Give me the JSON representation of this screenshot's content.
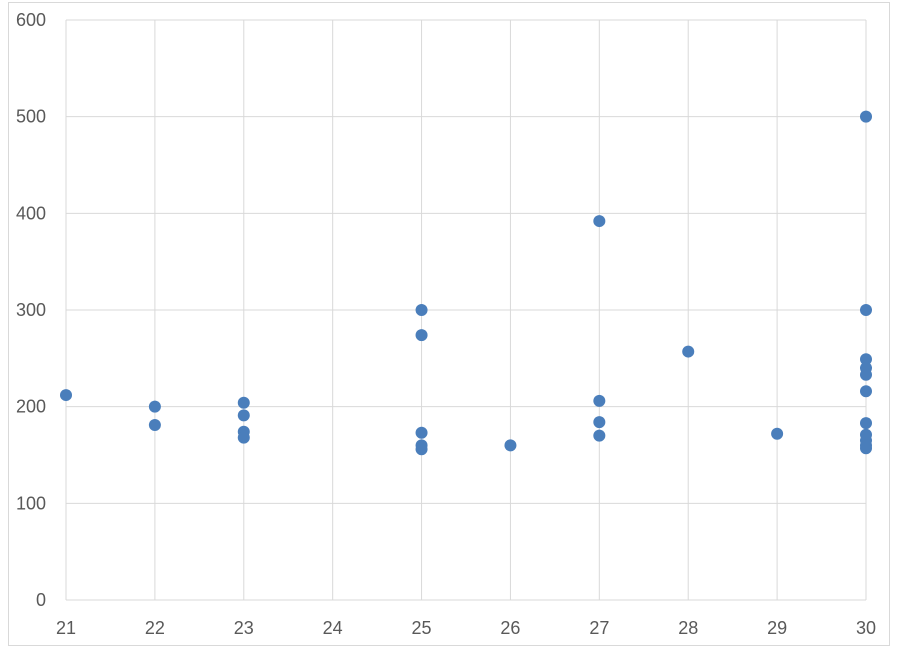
{
  "chart_data": {
    "type": "scatter",
    "title": "",
    "xlabel": "",
    "ylabel": "",
    "xlim": [
      21,
      30
    ],
    "ylim": [
      0,
      600
    ],
    "x_ticks": [
      "21",
      "22",
      "23",
      "24",
      "25",
      "26",
      "27",
      "28",
      "29",
      "30"
    ],
    "y_ticks": [
      "0",
      "100",
      "200",
      "300",
      "400",
      "500",
      "600"
    ],
    "grid": true,
    "marker_color": "#4a7ebb",
    "grid_color": "#d9d9d9",
    "series": [
      {
        "points": [
          {
            "x": 21,
            "y": 212
          },
          {
            "x": 22,
            "y": 200
          },
          {
            "x": 22,
            "y": 181
          },
          {
            "x": 23,
            "y": 204
          },
          {
            "x": 23,
            "y": 191
          },
          {
            "x": 23,
            "y": 174
          },
          {
            "x": 23,
            "y": 168
          },
          {
            "x": 25,
            "y": 300
          },
          {
            "x": 25,
            "y": 274
          },
          {
            "x": 25,
            "y": 173
          },
          {
            "x": 25,
            "y": 160
          },
          {
            "x": 25,
            "y": 156
          },
          {
            "x": 26,
            "y": 160
          },
          {
            "x": 27,
            "y": 392
          },
          {
            "x": 27,
            "y": 206
          },
          {
            "x": 27,
            "y": 184
          },
          {
            "x": 27,
            "y": 170
          },
          {
            "x": 28,
            "y": 257
          },
          {
            "x": 29,
            "y": 172
          },
          {
            "x": 30,
            "y": 500
          },
          {
            "x": 30,
            "y": 300
          },
          {
            "x": 30,
            "y": 249
          },
          {
            "x": 30,
            "y": 240
          },
          {
            "x": 30,
            "y": 233
          },
          {
            "x": 30,
            "y": 216
          },
          {
            "x": 30,
            "y": 183
          },
          {
            "x": 30,
            "y": 171
          },
          {
            "x": 30,
            "y": 165
          },
          {
            "x": 30,
            "y": 160
          },
          {
            "x": 30,
            "y": 157
          }
        ]
      }
    ]
  }
}
